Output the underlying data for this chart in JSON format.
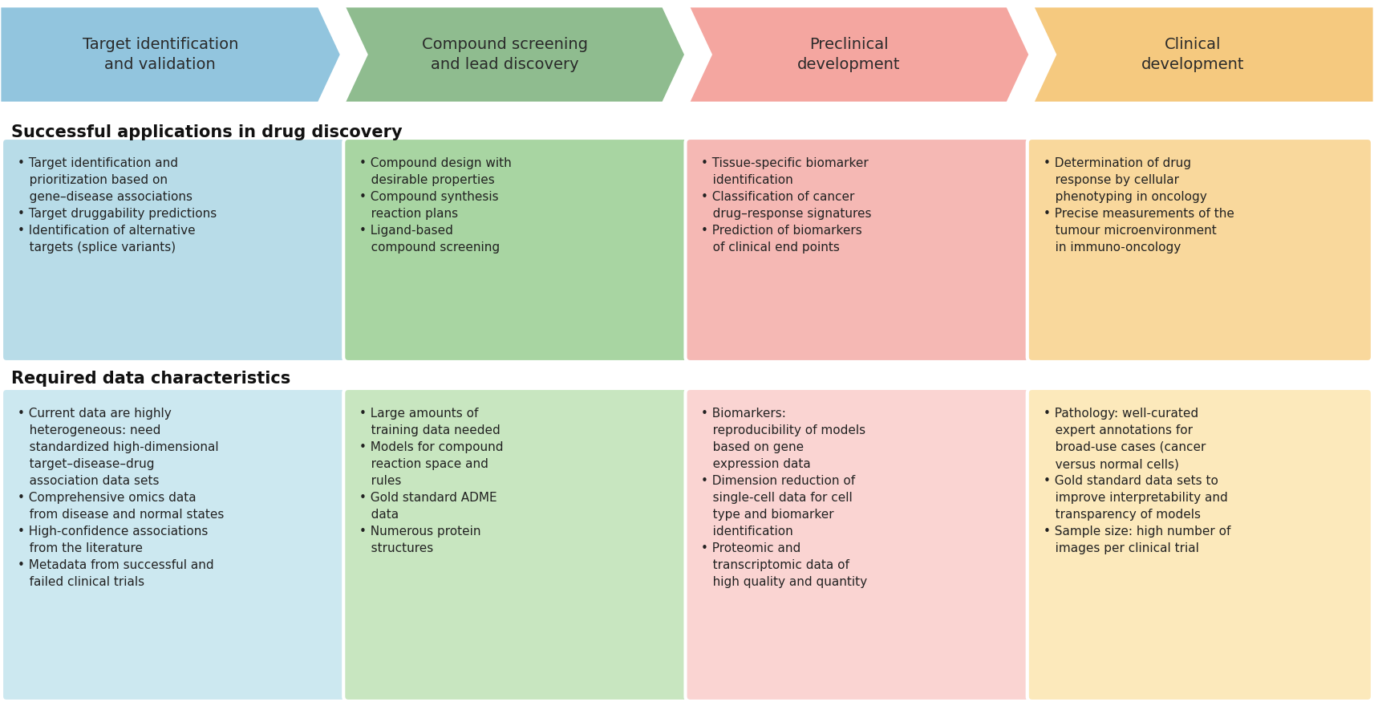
{
  "background_color": "#ffffff",
  "arrow_colors": [
    "#92c5de",
    "#8fbc8f",
    "#f4a6a0",
    "#f5c97f"
  ],
  "arrow_labels": [
    "Target identification\nand validation",
    "Compound screening\nand lead discovery",
    "Preclinical\ndevelopment",
    "Clinical\ndevelopment"
  ],
  "box_colors_apps": [
    "#b8dce8",
    "#a8d5a2",
    "#f5b8b4",
    "#f9d89c"
  ],
  "box_colors_data": [
    "#cce8f0",
    "#c8e6c0",
    "#fad4d2",
    "#fce9bb"
  ],
  "section1_title": "Successful applications in drug discovery",
  "section2_title": "Required data characteristics",
  "col1_apps": "• Target identification and\n   prioritization based on\n   gene–disease associations\n• Target druggability predictions\n• Identification of alternative\n   targets (splice variants)",
  "col2_apps": "• Compound design with\n   desirable properties\n• Compound synthesis\n   reaction plans\n• Ligand-based\n   compound screening",
  "col3_apps": "• Tissue-specific biomarker\n   identification\n• Classification of cancer\n   drug–response signatures\n• Prediction of biomarkers\n   of clinical end points",
  "col4_apps": "• Determination of drug\n   response by cellular\n   phenotyping in oncology\n• Precise measurements of the\n   tumour microenvironment\n   in immuno-oncology",
  "col1_data": "• Current data are highly\n   heterogeneous: need\n   standardized high-dimensional\n   target–disease–drug\n   association data sets\n• Comprehensive omics data\n   from disease and normal states\n• High-confidence associations\n   from the literature\n• Metadata from successful and\n   failed clinical trials",
  "col2_data": "• Large amounts of\n   training data needed\n• Models for compound\n   reaction space and\n   rules\n• Gold standard ADME\n   data\n• Numerous protein\n   structures",
  "col3_data": "• Biomarkers:\n   reproducibility of models\n   based on gene\n   expression data\n• Dimension reduction of\n   single-cell data for cell\n   type and biomarker\n   identification\n• Proteomic and\n   transcriptomic data of\n   high quality and quantity",
  "col4_data": "• Pathology: well-curated\n   expert annotations for\n   broad-use cases (cancer\n   versus normal cells)\n• Gold standard data sets to\n   improve interpretability and\n   transparency of models\n• Sample size: high number of\n   images per clinical trial"
}
